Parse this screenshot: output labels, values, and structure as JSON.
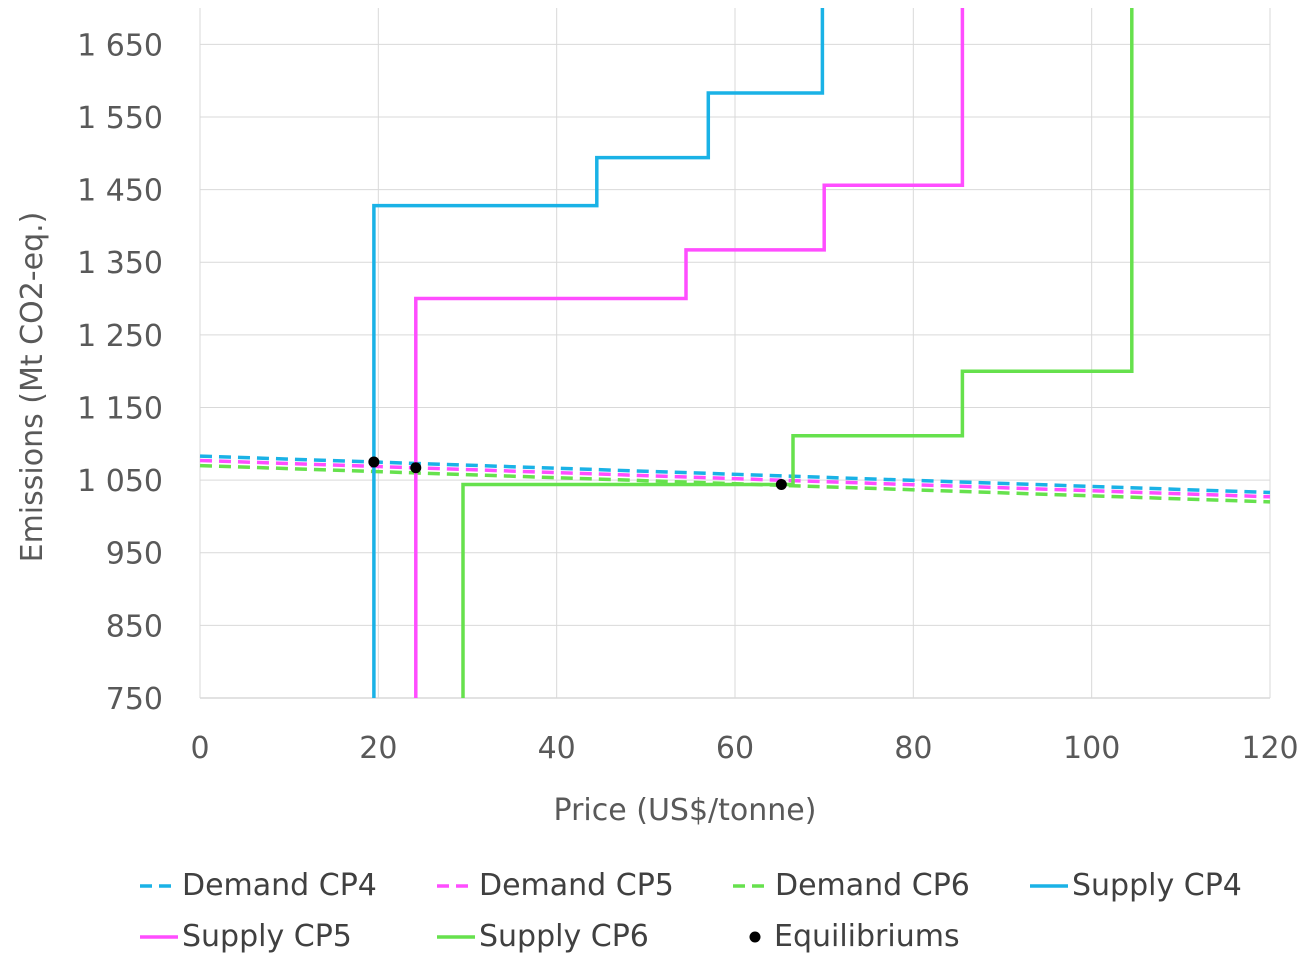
{
  "chart_data": {
    "type": "line",
    "title": "",
    "xlabel": "Price (US$/tonne)",
    "ylabel": "Emissions (Mt CO2-eq.)",
    "xlim": [
      0,
      120
    ],
    "ylim": [
      750,
      1700
    ],
    "x_ticks": [
      0,
      20,
      40,
      60,
      80,
      100,
      120
    ],
    "x_tick_labels": [
      "0",
      "20",
      "40",
      "60",
      "80",
      "100",
      "120"
    ],
    "y_ticks": [
      750,
      850,
      950,
      1050,
      1150,
      1250,
      1350,
      1450,
      1550,
      1650
    ],
    "y_tick_labels": [
      "750",
      "850",
      "950",
      "1 050",
      "1 150",
      "1 250",
      "1 350",
      "1 450",
      "1 550",
      "1 650"
    ],
    "grid": {
      "vertical": true,
      "horizontal": true
    },
    "legend_position": "bottom",
    "series": [
      {
        "name": "Demand CP4",
        "kind": "demand",
        "style": "dashed",
        "color": "#1AB2E6",
        "x": [
          0,
          120
        ],
        "y": [
          1083,
          1033
        ]
      },
      {
        "name": "Demand CP5",
        "kind": "demand",
        "style": "dashed",
        "color": "#FF4DFF",
        "x": [
          0,
          120
        ],
        "y": [
          1077,
          1027
        ]
      },
      {
        "name": "Demand CP6",
        "kind": "demand",
        "style": "dashed",
        "color": "#66E14D",
        "x": [
          0,
          120
        ],
        "y": [
          1070,
          1020
        ]
      },
      {
        "name": "Supply CP4",
        "kind": "supply",
        "style": "solid",
        "color": "#1AB2E6",
        "x": [
          19.5,
          19.5,
          44.5,
          44.5,
          57,
          57,
          69.8,
          69.8
        ],
        "y": [
          750,
          1428,
          1428,
          1494,
          1494,
          1583,
          1583,
          1700
        ]
      },
      {
        "name": "Supply CP5",
        "kind": "supply",
        "style": "solid",
        "color": "#FF4DFF",
        "x": [
          24.2,
          24.2,
          54.5,
          54.5,
          70,
          70,
          85.5,
          85.5
        ],
        "y": [
          750,
          1300,
          1300,
          1367,
          1367,
          1456,
          1456,
          1700
        ]
      },
      {
        "name": "Supply CP6",
        "kind": "supply",
        "style": "solid",
        "color": "#66E14D",
        "x": [
          29.5,
          29.5,
          66.5,
          66.5,
          85.5,
          85.5,
          104.5,
          104.5
        ],
        "y": [
          750,
          1044,
          1044,
          1111,
          1111,
          1200,
          1200,
          1700
        ]
      },
      {
        "name": "Equilibriums",
        "kind": "points",
        "style": "marker",
        "color": "#000000",
        "x": [
          19.5,
          24.2,
          65.2
        ],
        "y": [
          1075,
          1067,
          1044
        ]
      }
    ]
  }
}
